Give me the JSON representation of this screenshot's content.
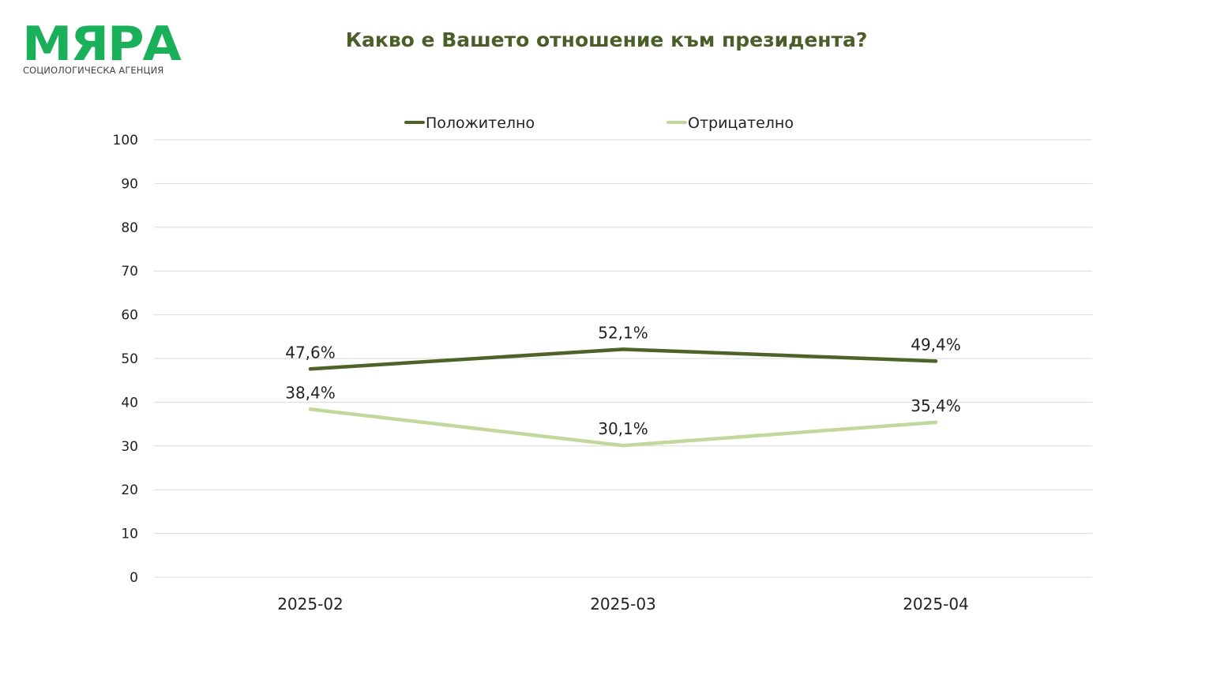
{
  "logo": {
    "word": "МЯРА",
    "subtitle": "СОЦИОЛОГИЧЕСКА АГЕНЦИЯ"
  },
  "chart_data": {
    "type": "line",
    "title": "Какво е Вашето отношение към президента?",
    "xlabel": "",
    "ylabel": "",
    "categories": [
      "2025-02",
      "2025-03",
      "2025-04"
    ],
    "series": [
      {
        "name": "Положително",
        "values": [
          47.6,
          52.1,
          49.4
        ],
        "labels": [
          "47,6%",
          "52,1%",
          "49,4%"
        ],
        "color": "#4f6228"
      },
      {
        "name": "Отрицателно",
        "values": [
          38.4,
          30.1,
          35.4
        ],
        "labels": [
          "38,4%",
          "30,1%",
          "35,4%"
        ],
        "color": "#c3d69b"
      }
    ],
    "ylim": [
      0,
      100
    ],
    "yticks": [
      0,
      10,
      20,
      30,
      40,
      50,
      60,
      70,
      80,
      90,
      100
    ],
    "grid": true,
    "gridColor": "#d9d9d9",
    "legend_position": "top"
  }
}
